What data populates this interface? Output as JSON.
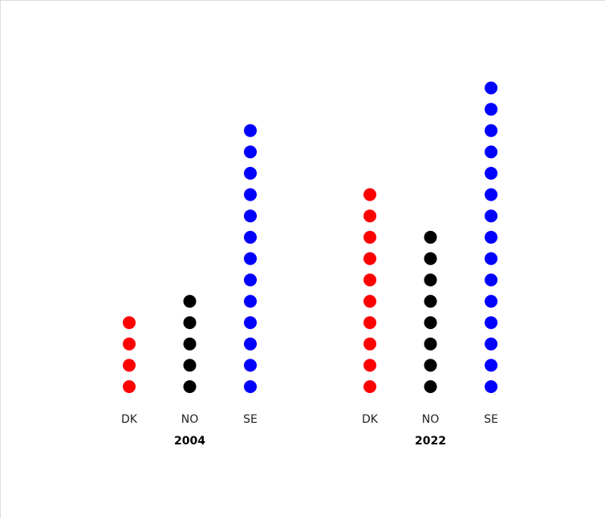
{
  "chart_data": {
    "type": "scatter",
    "groups": [
      {
        "label": "2004",
        "categories": [
          "DK",
          "NO",
          "SE"
        ],
        "values": [
          4,
          5,
          13
        ]
      },
      {
        "label": "2022",
        "categories": [
          "DK",
          "NO",
          "SE"
        ],
        "values": [
          10,
          8,
          15
        ]
      }
    ],
    "colors": {
      "DK": "#ff0000",
      "NO": "#000000",
      "SE": "#0000ff"
    },
    "grid": false,
    "legend": "none"
  }
}
